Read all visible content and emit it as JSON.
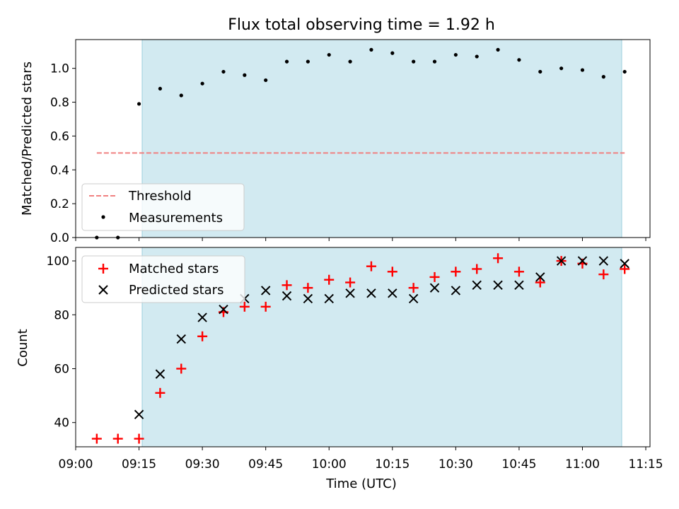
{
  "chart_data": [
    {
      "type": "scatter",
      "title": "Flux total observing time = 1.92 h",
      "xlabel": "",
      "ylabel": "Matched/Predicted stars",
      "ylim": [
        0,
        1.17
      ],
      "yticks": [
        "0.0",
        "0.2",
        "0.4",
        "0.6",
        "0.8",
        "1.0"
      ],
      "shaded_span": [
        "09:15",
        "11:10"
      ],
      "shade_color": "#add8e6",
      "legend_position": "lower-left",
      "threshold": {
        "name": "Threshold",
        "value": 0.5,
        "x_start": "09:05",
        "x_end": "11:10",
        "color": "#f08080"
      },
      "series": [
        {
          "name": "Measurements",
          "marker": "dot",
          "color": "#000000",
          "x": [
            "09:05",
            "09:10",
            "09:15",
            "09:20",
            "09:25",
            "09:30",
            "09:35",
            "09:40",
            "09:45",
            "09:50",
            "09:55",
            "10:00",
            "10:05",
            "10:10",
            "10:15",
            "10:20",
            "10:25",
            "10:30",
            "10:35",
            "10:40",
            "10:45",
            "10:50",
            "10:55",
            "11:00",
            "11:05",
            "11:10"
          ],
          "values": [
            0.0,
            0.0,
            0.79,
            0.88,
            0.84,
            0.91,
            0.98,
            0.96,
            0.93,
            1.04,
            1.04,
            1.08,
            1.04,
            1.11,
            1.09,
            1.04,
            1.04,
            1.08,
            1.07,
            1.11,
            1.05,
            0.98,
            1.0,
            0.99,
            0.95,
            0.98
          ]
        }
      ]
    },
    {
      "type": "scatter",
      "title": "",
      "xlabel": "Time (UTC)",
      "ylabel": "Count",
      "ylim": [
        31,
        105
      ],
      "yticks": [
        "40",
        "60",
        "80",
        "100"
      ],
      "xlim": [
        "09:00",
        "11:16"
      ],
      "xticks": [
        "09:00",
        "09:15",
        "09:30",
        "09:45",
        "10:00",
        "10:15",
        "10:30",
        "10:45",
        "11:00",
        "11:15"
      ],
      "shaded_span": [
        "09:15",
        "11:10"
      ],
      "legend_position": "top-left",
      "series": [
        {
          "name": "Matched stars",
          "marker": "plus",
          "color": "#ff0000",
          "x": [
            "09:05",
            "09:10",
            "09:15",
            "09:20",
            "09:25",
            "09:30",
            "09:35",
            "09:40",
            "09:45",
            "09:50",
            "09:55",
            "10:00",
            "10:05",
            "10:10",
            "10:15",
            "10:20",
            "10:25",
            "10:30",
            "10:35",
            "10:40",
            "10:45",
            "10:50",
            "10:55",
            "11:00",
            "11:05",
            "11:10"
          ],
          "values": [
            34,
            34,
            34,
            51,
            60,
            72,
            81,
            83,
            83,
            91,
            90,
            93,
            92,
            98,
            96,
            90,
            94,
            96,
            97,
            101,
            96,
            92,
            100,
            99,
            95,
            97
          ]
        },
        {
          "name": "Predicted stars",
          "marker": "x",
          "color": "#000000",
          "x": [
            "09:15",
            "09:20",
            "09:25",
            "09:30",
            "09:35",
            "09:40",
            "09:45",
            "09:50",
            "09:55",
            "10:00",
            "10:05",
            "10:10",
            "10:15",
            "10:20",
            "10:25",
            "10:30",
            "10:35",
            "10:40",
            "10:45",
            "10:50",
            "10:55",
            "11:00",
            "11:05",
            "11:10"
          ],
          "values": [
            43,
            58,
            71,
            79,
            82,
            86,
            89,
            87,
            86,
            86,
            88,
            88,
            88,
            86,
            90,
            89,
            91,
            91,
            91,
            94,
            100,
            100,
            100,
            99
          ]
        }
      ]
    }
  ]
}
